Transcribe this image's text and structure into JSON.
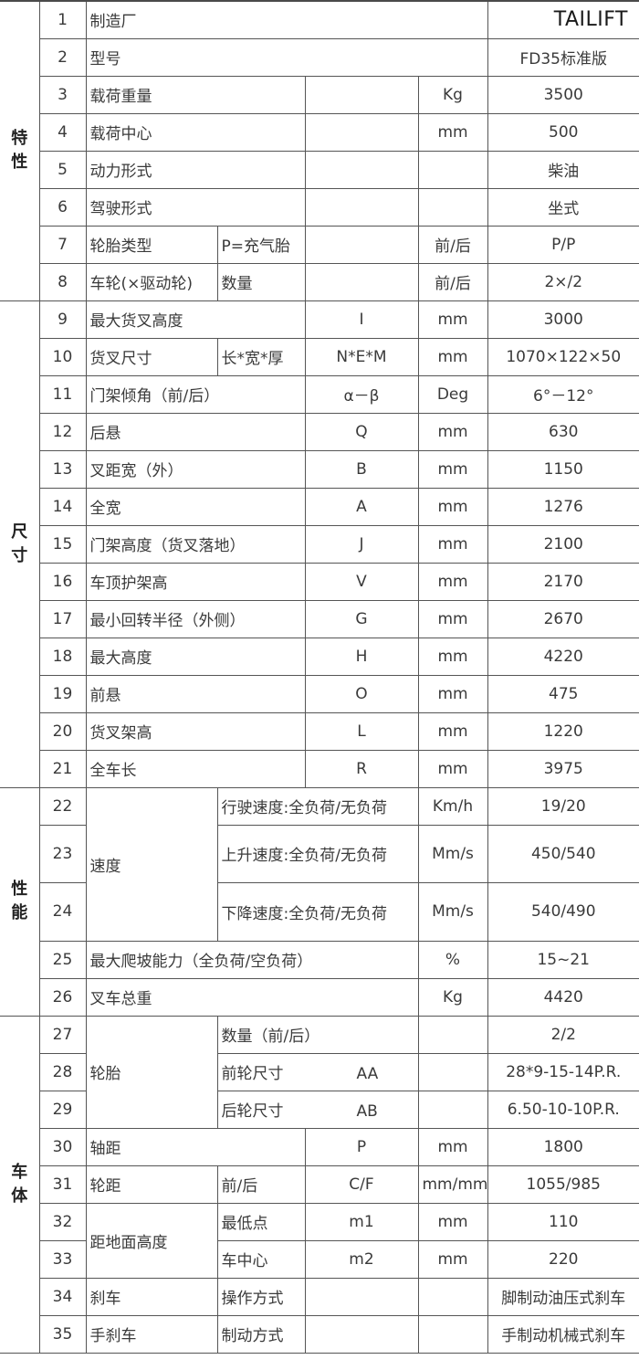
{
  "sections": [
    {
      "label": "特性",
      "rows": [
        {
          "no": "1",
          "name": "制造厂",
          "value": "TAILIFT"
        },
        {
          "no": "2",
          "name": "型号",
          "value": "FD35标准版"
        },
        {
          "no": "3",
          "name": "载荷重量",
          "symbol": "",
          "unit": "Kg",
          "value": "3500"
        },
        {
          "no": "4",
          "name": "载荷中心",
          "symbol": "",
          "unit": "mm",
          "value": "500"
        },
        {
          "no": "5",
          "name": "动力形式",
          "symbol": "",
          "unit": "",
          "value": "柴油"
        },
        {
          "no": "6",
          "name": "驾驶形式",
          "symbol": "",
          "unit": "",
          "value": "坐式"
        },
        {
          "no": "7",
          "name": "轮胎类型",
          "sub": "P=充气胎",
          "symbol": "",
          "unit": "前/后",
          "value": "P/P"
        },
        {
          "no": "8",
          "name": "车轮(×驱动轮)",
          "sub": "数量",
          "symbol": "",
          "unit": "前/后",
          "value": "2×/2"
        }
      ]
    },
    {
      "label": "尺寸",
      "rows": [
        {
          "no": "9",
          "name": "最大货叉高度",
          "symbol": "I",
          "unit": "mm",
          "value": "3000"
        },
        {
          "no": "10",
          "name": "货叉尺寸",
          "sub": "长*宽*厚",
          "symbol": "N*E*M",
          "unit": "mm",
          "value": "1070×122×50"
        },
        {
          "no": "11",
          "name": "门架倾角（前/后）",
          "symbol": "α－β",
          "unit": "Deg",
          "value": "6°－12°"
        },
        {
          "no": "12",
          "name": "后悬",
          "symbol": "Q",
          "unit": "mm",
          "value": "630"
        },
        {
          "no": "13",
          "name": "叉距宽（外）",
          "symbol": "B",
          "unit": "mm",
          "value": "1150"
        },
        {
          "no": "14",
          "name": "全宽",
          "symbol": "A",
          "unit": "mm",
          "value": "1276"
        },
        {
          "no": "15",
          "name": "门架高度（货叉落地）",
          "symbol": "J",
          "unit": "mm",
          "value": "2100"
        },
        {
          "no": "16",
          "name": "车顶护架高",
          "symbol": "V",
          "unit": "mm",
          "value": "2170"
        },
        {
          "no": "17",
          "name": "最小回转半径（外侧）",
          "symbol": "G",
          "unit": "mm",
          "value": "2670"
        },
        {
          "no": "18",
          "name": "最大高度",
          "symbol": "H",
          "unit": "mm",
          "value": "4220"
        },
        {
          "no": "19",
          "name": "前悬",
          "symbol": "O",
          "unit": "mm",
          "value": "475"
        },
        {
          "no": "20",
          "name": "货叉架高",
          "symbol": "L",
          "unit": "mm",
          "value": "1220"
        },
        {
          "no": "21",
          "name": "全车长",
          "symbol": "R",
          "unit": "mm",
          "value": "3975"
        }
      ]
    },
    {
      "label": "性能",
      "rows": [
        {
          "no": "22",
          "name": "速度",
          "sub": "行驶速度:全负荷/无负荷",
          "unit": "Km/h",
          "value": "19/20"
        },
        {
          "no": "23",
          "sub": "上升速度:全负荷/无负荷",
          "unit": "Mm/s",
          "value": "450/540"
        },
        {
          "no": "24",
          "sub": "下降速度:全负荷/无负荷",
          "unit": "Mm/s",
          "value": "540/490"
        },
        {
          "no": "25",
          "name": "最大爬坡能力（全负荷/空负荷）",
          "unit": "%",
          "value": "15~21"
        },
        {
          "no": "26",
          "name": "叉车总重",
          "unit": "Kg",
          "value": "4420"
        }
      ]
    },
    {
      "label": "车体",
      "rows": [
        {
          "no": "27",
          "name": "轮胎",
          "sub": "数量（前/后）",
          "symbol": "",
          "unit": "",
          "value": "2/2"
        },
        {
          "no": "28",
          "sub": "前轮尺寸",
          "symbol": "AA",
          "unit": "",
          "value": "28*9-15-14P.R."
        },
        {
          "no": "29",
          "sub": "后轮尺寸",
          "symbol": "AB",
          "unit": "",
          "value": "6.50-10-10P.R."
        },
        {
          "no": "30",
          "name": "轴距",
          "symbol": "P",
          "unit": "mm",
          "value": "1800"
        },
        {
          "no": "31",
          "name": "轮距",
          "sub": "前/后",
          "symbol": "C/F",
          "unit": "mm/mm",
          "value": "1055/985"
        },
        {
          "no": "32",
          "name": "距地面高度",
          "sub": "最低点",
          "symbol": "m1",
          "unit": "mm",
          "value": "110"
        },
        {
          "no": "33",
          "sub": "车中心",
          "symbol": "m2",
          "unit": "mm",
          "value": "220"
        },
        {
          "no": "34",
          "name": "刹车",
          "sub": "操作方式",
          "symbol": "",
          "unit": "",
          "value": "脚制动油压式刹车"
        },
        {
          "no": "35",
          "name": "手刹车",
          "sub": "制动方式",
          "symbol": "",
          "unit": "",
          "value": "手制动机械式刹车"
        }
      ]
    }
  ]
}
